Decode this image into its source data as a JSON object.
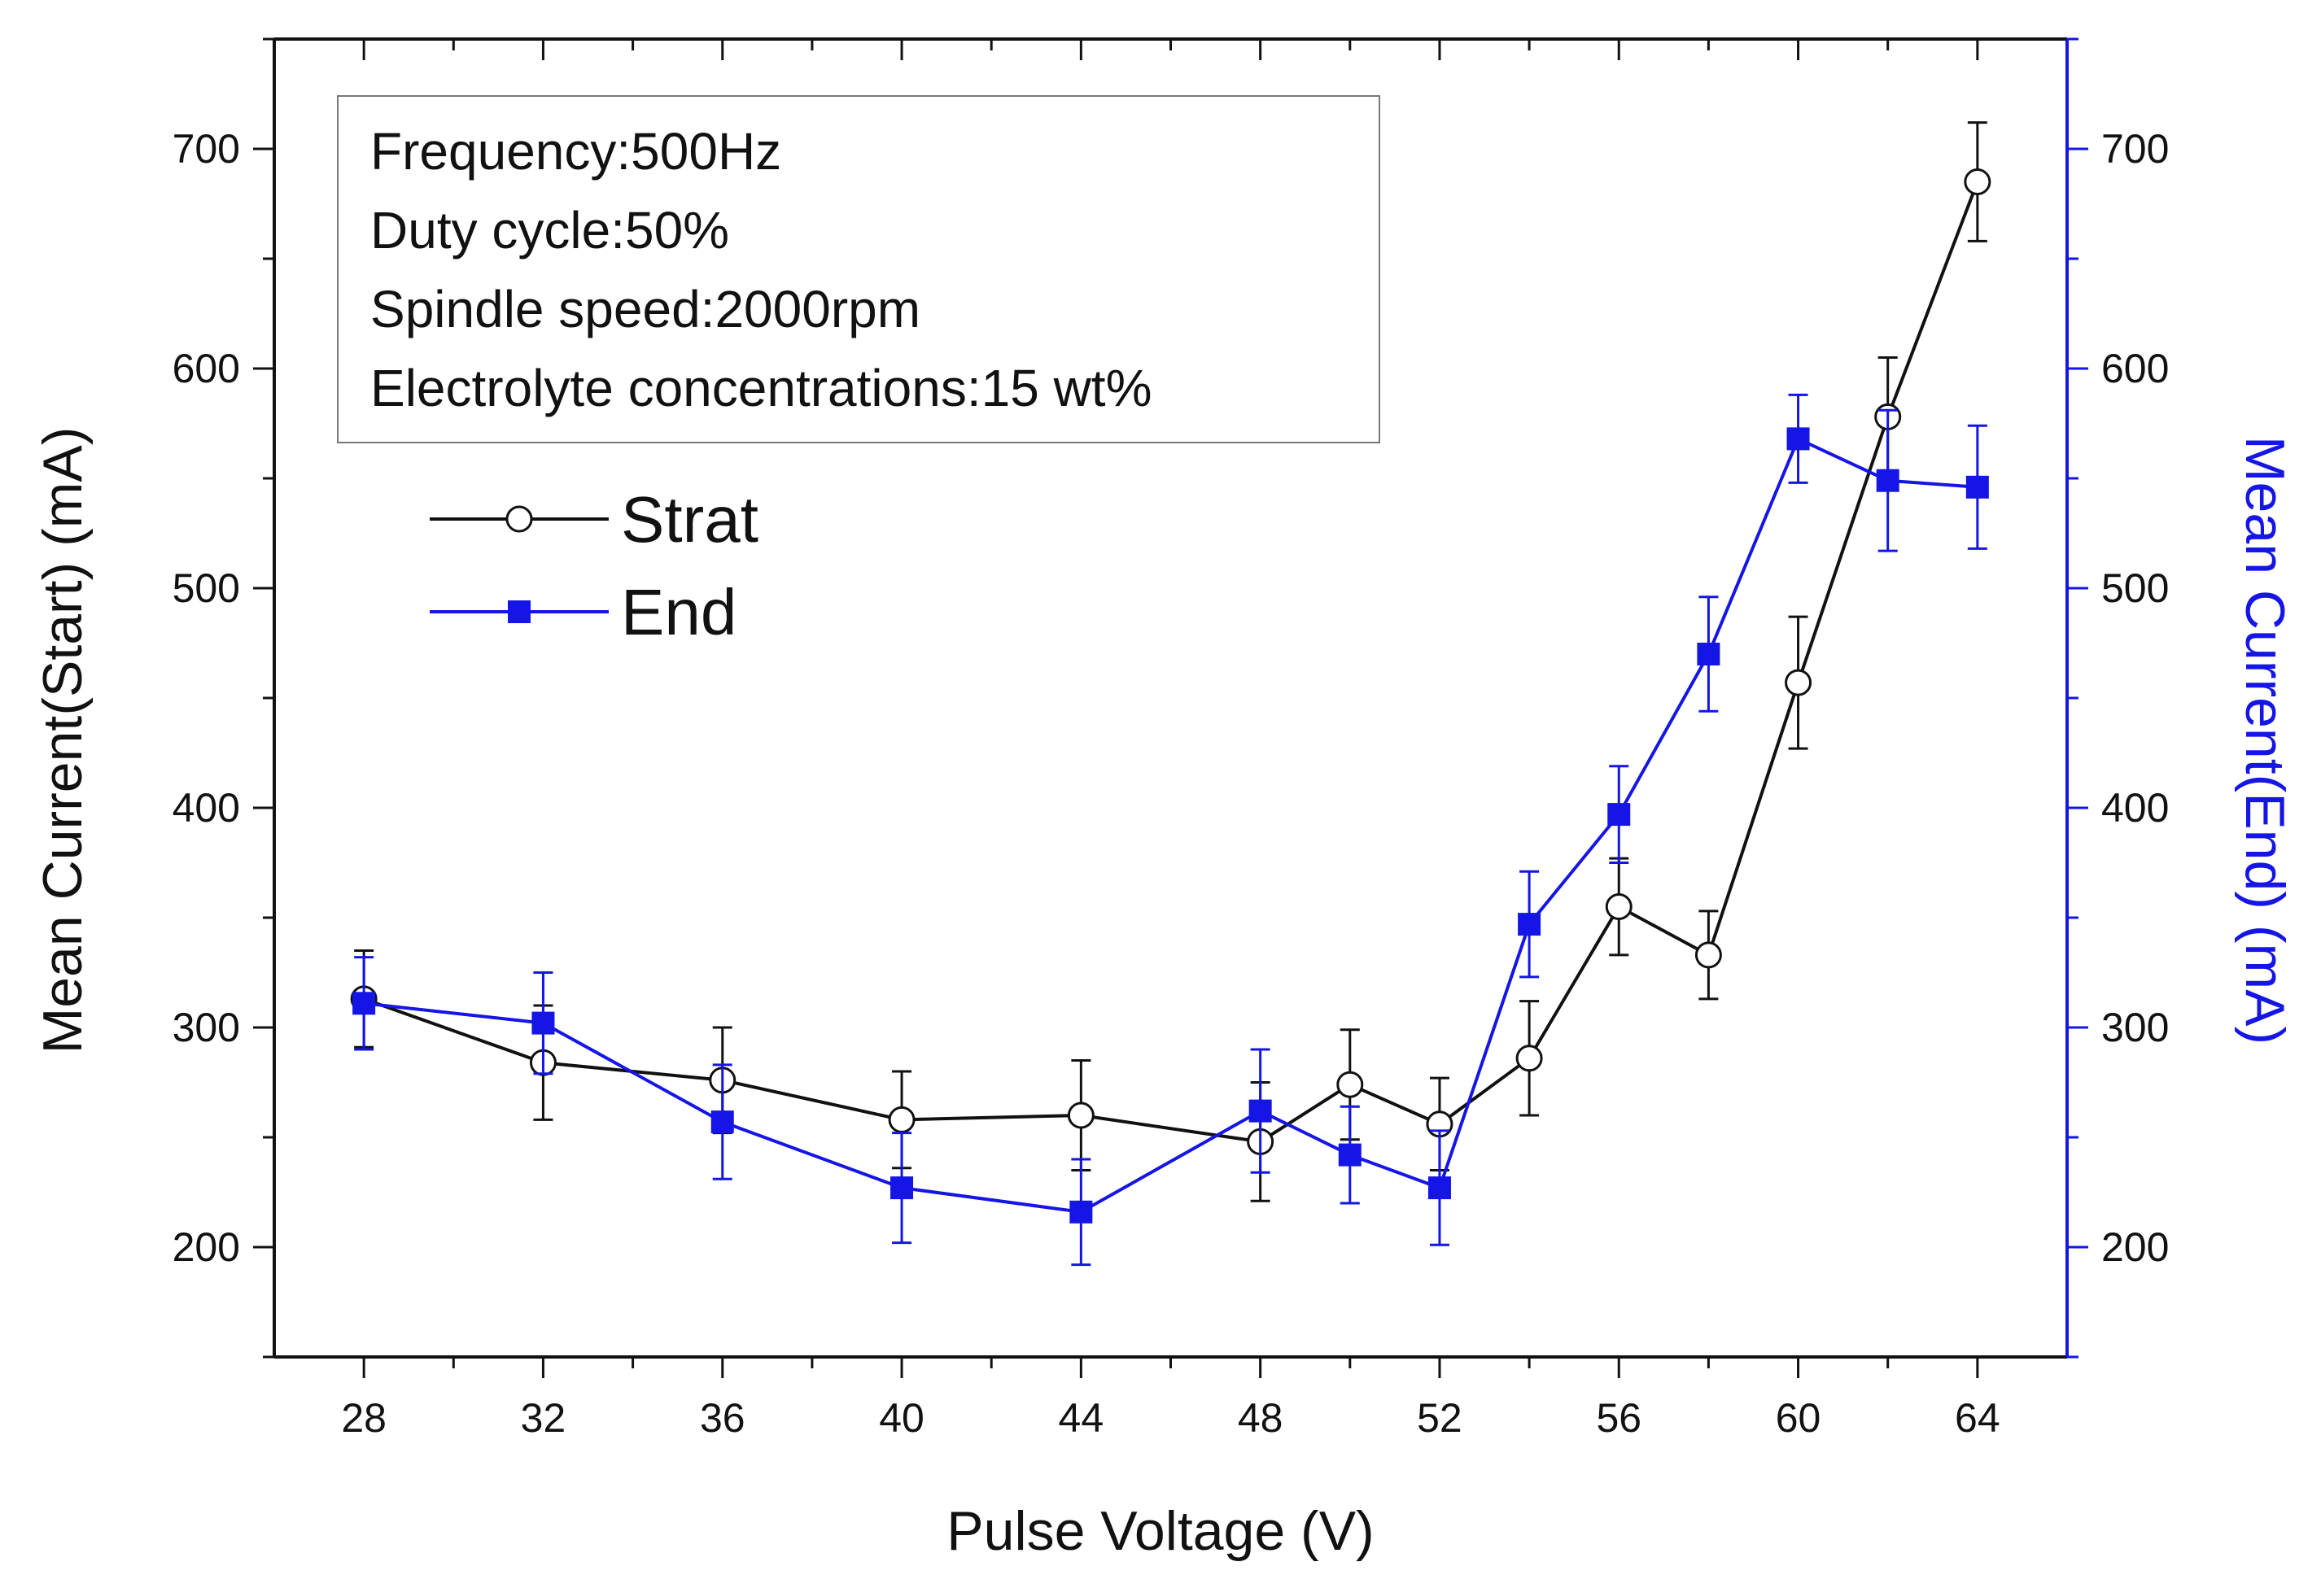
{
  "chart_data": {
    "type": "line",
    "title": "",
    "xlabel": "Pulse Voltage (V)",
    "ylabel_left": "Mean Current(Start) (mA)",
    "ylabel_right": "Mean Current(End) (mA)",
    "xlim": [
      26,
      66
    ],
    "ylim_left": [
      150,
      750
    ],
    "ylim_right": [
      150,
      750
    ],
    "x_ticks": [
      28,
      32,
      36,
      40,
      44,
      48,
      52,
      56,
      60,
      64
    ],
    "y_ticks": [
      200,
      300,
      400,
      500,
      600,
      700
    ],
    "grid": false,
    "legend_position": "upper-left",
    "annotation_lines": [
      "Frequency:500Hz",
      "Duty cycle:50%",
      "Spindle speed:2000rpm",
      "Electrolyte concentrations:15 wt%"
    ],
    "series": [
      {
        "name": "Strat",
        "axis": "left",
        "color": "#111111",
        "marker": "open-circle",
        "x": [
          28,
          32,
          36,
          40,
          44,
          48,
          50,
          52,
          54,
          56,
          58,
          60,
          62,
          64
        ],
        "values": [
          313,
          284,
          276,
          258,
          260,
          248,
          274,
          256,
          286,
          355,
          333,
          457,
          578,
          685
        ],
        "errors": [
          22,
          26,
          24,
          22,
          25,
          27,
          25,
          21,
          26,
          22,
          20,
          30,
          27,
          27
        ]
      },
      {
        "name": "End",
        "axis": "right",
        "color": "#1515e6",
        "marker": "filled-square",
        "x": [
          28,
          32,
          36,
          40,
          44,
          48,
          50,
          52,
          54,
          56,
          58,
          60,
          62,
          64
        ],
        "values": [
          311,
          302,
          257,
          227,
          216,
          262,
          242,
          227,
          347,
          397,
          470,
          568,
          549,
          546
        ],
        "errors": [
          21,
          23,
          26,
          25,
          24,
          28,
          22,
          26,
          24,
          22,
          26,
          20,
          32,
          28
        ]
      }
    ]
  }
}
